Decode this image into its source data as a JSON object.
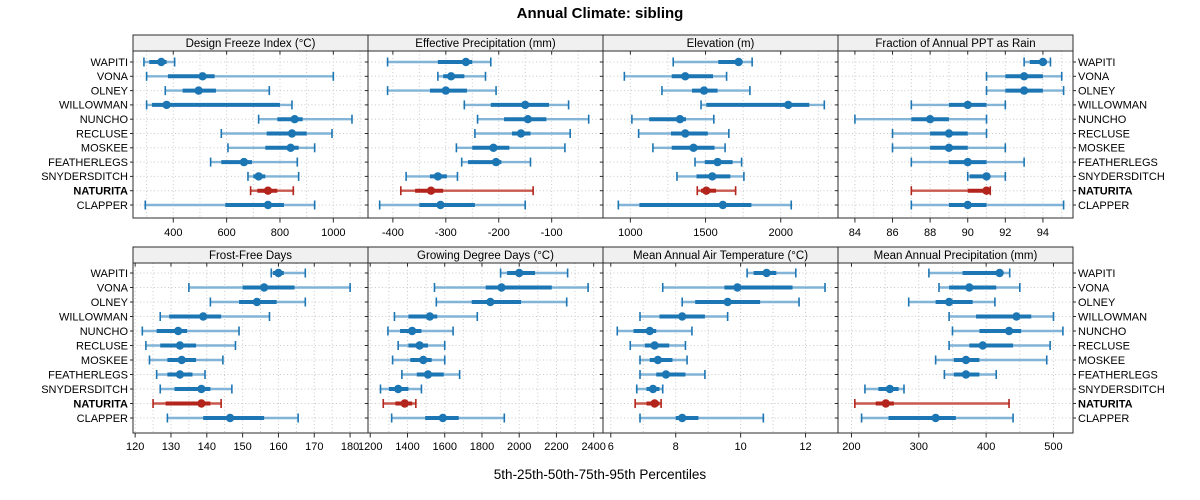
{
  "title": "Annual Climate: sibling",
  "caption": "5th-25th-50th-75th-95th Percentiles",
  "colors": {
    "blue": "#1d76b4",
    "blue_light": "#82b4d8",
    "red": "#b2241c",
    "red_light": "#c9584e",
    "header_bg": "#f0f0f0",
    "border": "#2b2b2b",
    "grid": "#c9c9c9",
    "tick": "#2b2b2b"
  },
  "chart_data": {
    "type": "dot-interval",
    "percentile_labels": [
      5,
      25,
      50,
      75,
      95
    ],
    "stations": [
      "WAPITI",
      "VONA",
      "OLNEY",
      "WILLOWMAN",
      "NUNCHO",
      "RECLUSE",
      "MOSKEE",
      "FEATHERLEGS",
      "SNYDERSDITCH",
      "NATURITA",
      "CLAPPER"
    ],
    "highlight_station": "NATURITA",
    "legend_note": "highlight station drawn in red, others in blue",
    "panels": [
      {
        "title": "Design Freeze Index (°C)",
        "xlim": [
          249,
          1130
        ],
        "grid_start": 300,
        "grid_step": 100,
        "ticks": [
          400,
          600,
          800,
          1000
        ],
        "values": [
          [
            290,
            310,
            355,
            375,
            405
          ],
          [
            300,
            380,
            510,
            555,
            1000
          ],
          [
            370,
            435,
            495,
            560,
            760
          ],
          [
            300,
            320,
            375,
            800,
            845
          ],
          [
            720,
            790,
            855,
            885,
            1070
          ],
          [
            580,
            750,
            845,
            900,
            995
          ],
          [
            605,
            745,
            840,
            870,
            930
          ],
          [
            540,
            580,
            665,
            695,
            865
          ],
          [
            680,
            700,
            720,
            745,
            870
          ],
          [
            690,
            715,
            755,
            790,
            850
          ],
          [
            295,
            595,
            755,
            815,
            930
          ]
        ]
      },
      {
        "title": "Effective Precipitation (mm)",
        "xlim": [
          -447,
          -3
        ],
        "grid_start": -400,
        "grid_step": 50,
        "ticks": [
          -400,
          -300,
          -200,
          -100
        ],
        "values": [
          [
            -410,
            -315,
            -262,
            -250,
            -215
          ],
          [
            -315,
            -305,
            -290,
            -265,
            -225
          ],
          [
            -410,
            -330,
            -300,
            -260,
            -205
          ],
          [
            -265,
            -215,
            -150,
            -105,
            -68
          ],
          [
            -240,
            -190,
            -145,
            -110,
            -30
          ],
          [
            -245,
            -175,
            -158,
            -140,
            -65
          ],
          [
            -280,
            -250,
            -210,
            -180,
            -75
          ],
          [
            -270,
            -258,
            -205,
            -195,
            -140
          ],
          [
            -375,
            -330,
            -315,
            -298,
            -278
          ],
          [
            -385,
            -358,
            -328,
            -305,
            -135
          ],
          [
            -425,
            -350,
            -310,
            -245,
            -150
          ]
        ]
      },
      {
        "title": "Elevation (m)",
        "xlim": [
          818,
          2381
        ],
        "grid_start": 1000,
        "grid_step": 250,
        "ticks": [
          1000,
          1500,
          2000
        ],
        "values": [
          [
            1285,
            1585,
            1720,
            1745,
            1810
          ],
          [
            960,
            1275,
            1365,
            1550,
            1640
          ],
          [
            1210,
            1410,
            1490,
            1580,
            1795
          ],
          [
            1470,
            1505,
            2050,
            2190,
            2290
          ],
          [
            1010,
            1125,
            1330,
            1370,
            1555
          ],
          [
            1055,
            1270,
            1365,
            1515,
            1655
          ],
          [
            1150,
            1275,
            1420,
            1560,
            1630
          ],
          [
            1430,
            1495,
            1580,
            1680,
            1740
          ],
          [
            1310,
            1440,
            1545,
            1665,
            1755
          ],
          [
            1445,
            1470,
            1505,
            1570,
            1700
          ],
          [
            920,
            1060,
            1615,
            1805,
            2070
          ]
        ]
      },
      {
        "title": "Fraction of Annual PPT as Rain",
        "xlim": [
          83.1,
          95.6
        ],
        "grid_start": 84,
        "grid_step": 1,
        "ticks": [
          84,
          86,
          88,
          90,
          92,
          94
        ],
        "values": [
          [
            93,
            93.3,
            94,
            94.2,
            94.4
          ],
          [
            91,
            92,
            93,
            94,
            95
          ],
          [
            91,
            92,
            93,
            94,
            95.1
          ],
          [
            87,
            89,
            90,
            91,
            92
          ],
          [
            84,
            87,
            88,
            89,
            91
          ],
          [
            86,
            88,
            89,
            90,
            91
          ],
          [
            86,
            88,
            89,
            90,
            92
          ],
          [
            87,
            89,
            90,
            91,
            93
          ],
          [
            90,
            90.1,
            91,
            91.1,
            92
          ],
          [
            87,
            90,
            91,
            91,
            91.2
          ],
          [
            87,
            89,
            90,
            91,
            95.1
          ]
        ]
      },
      {
        "title": "Frost-Free Days",
        "xlim": [
          119.4,
          185
        ],
        "grid_start": 120,
        "grid_step": 5,
        "ticks": [
          120,
          130,
          140,
          150,
          160,
          170,
          180
        ],
        "values": [
          [
            158,
            158.5,
            160,
            161.5,
            167.5
          ],
          [
            135,
            150,
            156,
            164.5,
            180
          ],
          [
            141,
            149,
            154,
            159.5,
            167.5
          ],
          [
            127,
            129.5,
            139,
            144,
            157.5
          ],
          [
            122,
            126,
            132,
            134.5,
            149
          ],
          [
            123,
            127,
            132.5,
            137,
            148
          ],
          [
            124,
            129,
            133,
            137,
            144.5
          ],
          [
            126,
            129,
            132.5,
            136,
            139.5
          ],
          [
            127,
            131,
            138.5,
            141,
            147
          ],
          [
            125,
            128.5,
            138.5,
            141,
            144
          ],
          [
            129,
            139,
            146.5,
            156,
            165.5
          ]
        ]
      },
      {
        "title": "Growing Degree Days (°C)",
        "xlim": [
          1188,
          2450
        ],
        "grid_start": 1200,
        "grid_step": 100,
        "ticks": [
          1200,
          1400,
          1600,
          1800,
          2000,
          2200,
          2400
        ],
        "values": [
          [
            1900,
            1935,
            2000,
            2085,
            2260
          ],
          [
            1545,
            1820,
            1905,
            2175,
            2370
          ],
          [
            1555,
            1745,
            1845,
            2010,
            2255
          ],
          [
            1330,
            1405,
            1520,
            1560,
            1775
          ],
          [
            1295,
            1360,
            1425,
            1475,
            1645
          ],
          [
            1350,
            1405,
            1465,
            1510,
            1600
          ],
          [
            1320,
            1415,
            1485,
            1530,
            1600
          ],
          [
            1370,
            1450,
            1510,
            1595,
            1680
          ],
          [
            1255,
            1300,
            1350,
            1405,
            1475
          ],
          [
            1270,
            1335,
            1385,
            1425,
            1445
          ],
          [
            1315,
            1495,
            1590,
            1675,
            1920
          ]
        ]
      },
      {
        "title": "Mean Annual Air Temperature (°C)",
        "xlim": [
          5.76,
          13.0
        ],
        "grid_start": 6,
        "grid_step": 1,
        "ticks": [
          6,
          8,
          10,
          12
        ],
        "values": [
          [
            10.2,
            10.4,
            10.8,
            11.1,
            11.7
          ],
          [
            7.6,
            9.5,
            9.9,
            11.6,
            12.6
          ],
          [
            8.2,
            8.6,
            9.6,
            10.6,
            11.8
          ],
          [
            6.9,
            7.5,
            8.2,
            8.9,
            9.6
          ],
          [
            6.2,
            6.7,
            7.2,
            7.4,
            8.5
          ],
          [
            6.6,
            7.05,
            7.35,
            7.8,
            8.3
          ],
          [
            6.9,
            7.2,
            7.45,
            7.9,
            8.35
          ],
          [
            6.9,
            7.4,
            7.7,
            8.3,
            8.9
          ],
          [
            6.8,
            7.1,
            7.3,
            7.5,
            7.6
          ],
          [
            6.75,
            7.1,
            7.35,
            7.5,
            7.55
          ],
          [
            6.9,
            8.0,
            8.2,
            8.7,
            10.7
          ]
        ]
      },
      {
        "title": "Mean Annual Precipitation (mm)",
        "xlim": [
          180,
          529
        ],
        "grid_start": 200,
        "grid_step": 50,
        "ticks": [
          200,
          300,
          400,
          500
        ],
        "values": [
          [
            315,
            365,
            420,
            425,
            435
          ],
          [
            330,
            345,
            375,
            415,
            450
          ],
          [
            285,
            325,
            345,
            380,
            413
          ],
          [
            345,
            385,
            445,
            467,
            500
          ],
          [
            350,
            390,
            434,
            452,
            514
          ],
          [
            345,
            375,
            395,
            440,
            495
          ],
          [
            325,
            352,
            370,
            390,
            490
          ],
          [
            338,
            352,
            370,
            390,
            415
          ],
          [
            220,
            240,
            257,
            270,
            278
          ],
          [
            205,
            236,
            251,
            263,
            434
          ],
          [
            215,
            255,
            325,
            355,
            440
          ]
        ]
      }
    ]
  }
}
